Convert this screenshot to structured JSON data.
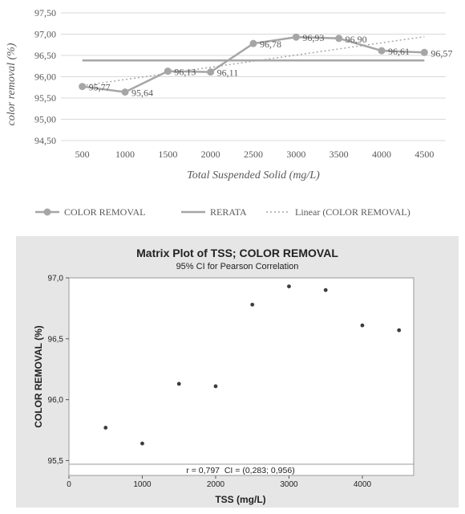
{
  "chart_data": [
    {
      "type": "line",
      "title": "",
      "xlabel": "Total Suspended Solid (mg/L)",
      "ylabel": "color removal (%)",
      "x": [
        500,
        1000,
        1500,
        2000,
        2500,
        3000,
        3500,
        4000,
        4500
      ],
      "x_tick_labels": [
        "500",
        "1000",
        "1500",
        "2000",
        "2500",
        "3000",
        "3500",
        "4000",
        "4500"
      ],
      "y_tick_labels": [
        "94,50",
        "95,00",
        "95,50",
        "96,00",
        "96,50",
        "97,00",
        "97,50"
      ],
      "ylim": [
        94.5,
        97.5
      ],
      "grid": true,
      "legend_position": "bottom",
      "series": [
        {
          "name": "COLOR REMOVAL",
          "values": [
            95.77,
            95.64,
            96.13,
            96.11,
            96.78,
            96.93,
            96.9,
            96.61,
            96.57
          ],
          "data_labels": [
            "95,77",
            "95,64",
            "96,13",
            "96,11",
            "96,78",
            "96,93",
            "96,90",
            "96,61",
            "96,57"
          ],
          "color": "#a6a6a6"
        },
        {
          "name": "RERATA",
          "values": [
            96.383,
            96.383,
            96.383,
            96.383,
            96.383,
            96.383,
            96.383,
            96.383,
            96.383
          ],
          "color": "#a6a6a6"
        },
        {
          "name": "Linear (COLOR REMOVAL)",
          "values": [
            95.79,
            95.93,
            96.07,
            96.22,
            96.36,
            96.51,
            96.65,
            96.79,
            96.94
          ],
          "style": "dotted",
          "color": "#a6a6a6"
        }
      ]
    },
    {
      "type": "scatter",
      "title": "Matrix Plot of TSS; COLOR REMOVAL",
      "subtitle": "95% CI for Pearson Correlation",
      "xlabel": "TSS (mg/L)",
      "ylabel": "COLOR REMOVAL (%)",
      "x": [
        500,
        1000,
        1500,
        2000,
        2500,
        3000,
        3500,
        4000,
        4500
      ],
      "y": [
        95.77,
        95.64,
        96.13,
        96.11,
        96.78,
        96.93,
        96.9,
        96.61,
        96.57
      ],
      "x_tick_labels": [
        "0",
        "1000",
        "2000",
        "3000",
        "4000"
      ],
      "y_tick_labels": [
        "95,5",
        "96,0",
        "96,5",
        "97,0"
      ],
      "xlim": [
        0,
        4700
      ],
      "ylim": [
        95.47,
        97.0
      ],
      "annotation": "r = 0,797  CI = (0,283; 0,956)",
      "colors": {
        "panel": "#e6e6e6",
        "plot": "#ffffff",
        "points": "#3c3c3c"
      }
    }
  ]
}
